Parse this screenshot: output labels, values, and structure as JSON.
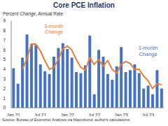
{
  "chart_data": {
    "type": "bar",
    "title": "Core PCE Inflation",
    "subtitle": "Percent Change, Annual Rate",
    "source": "Source: Bureau of Economic Analysis via Macrobond; author's calculations.",
    "categories": [
      "Jan 21",
      null,
      null,
      null,
      null,
      null,
      "Jul 21",
      null,
      null,
      null,
      null,
      null,
      "Jan 22",
      null,
      null,
      null,
      null,
      null,
      "Jul 22",
      null,
      null,
      null,
      null,
      null,
      "Jan 23",
      null,
      null,
      null,
      null,
      null,
      "Jul 23",
      null,
      null,
      null
    ],
    "series": [
      {
        "name": "1-month Change",
        "type": "bar",
        "color": "#4472c4",
        "values": [
          4.1,
          2.5,
          5.2,
          7.6,
          6.6,
          6.5,
          4.5,
          3.8,
          3.5,
          5.3,
          6.2,
          6.7,
          6.1,
          5.2,
          3.7,
          3.6,
          4.4,
          7.5,
          1.4,
          6.0,
          5.3,
          3.5,
          2.9,
          4.3,
          6.3,
          3.7,
          3.9,
          4.5,
          3.6,
          2.0,
          2.3,
          1.4,
          3.9,
          2.0
        ]
      },
      {
        "name": "3-month Change",
        "type": "line",
        "color": "#ed7d31",
        "values": [
          null,
          null,
          4.0,
          5.1,
          6.6,
          6.6,
          5.9,
          4.9,
          4.0,
          4.2,
          5.0,
          6.1,
          6.4,
          6.0,
          5.0,
          4.2,
          3.9,
          5.2,
          4.5,
          5.0,
          4.3,
          4.9,
          4.0,
          3.6,
          4.5,
          4.8,
          4.6,
          4.0,
          4.0,
          3.3,
          2.8,
          2.0,
          2.5,
          2.4
        ]
      }
    ],
    "ylim": [
      0,
      9
    ],
    "yticks": [
      0,
      1,
      2,
      3,
      4,
      5,
      6,
      7,
      8,
      9
    ],
    "grid": false
  }
}
